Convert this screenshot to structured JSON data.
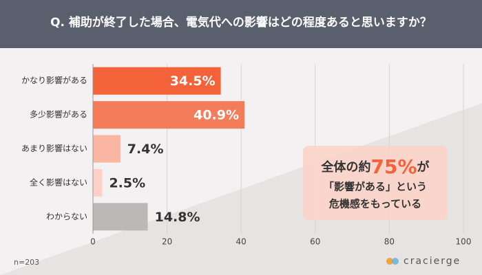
{
  "chart_data": {
    "type": "barh",
    "title": "Q. 補助が終了した場合、電気代への影響はどの程度あると思いますか？",
    "categories": [
      "かなり影響がある",
      "多少影響がある",
      "あまり影響はない",
      "全く影響はない",
      "わからない"
    ],
    "values": [
      34.5,
      40.9,
      7.4,
      2.5,
      14.8
    ],
    "value_labels": [
      "34.5%",
      "40.9%",
      "7.4%",
      "2.5%",
      "14.8%"
    ],
    "colors": [
      "#f4623a",
      "#f47c5a",
      "#fbb5a3",
      "#fcd0c6",
      "#bdb8b8"
    ],
    "xlim": [
      0,
      100
    ],
    "xticks": [
      0,
      20,
      40,
      60,
      80,
      100
    ],
    "grid": true,
    "annotation": [
      "全体の約",
      "75%",
      "が",
      "「影響がある」という",
      "危機感をもっている"
    ],
    "note": "n=203",
    "brand": "cracierge"
  }
}
